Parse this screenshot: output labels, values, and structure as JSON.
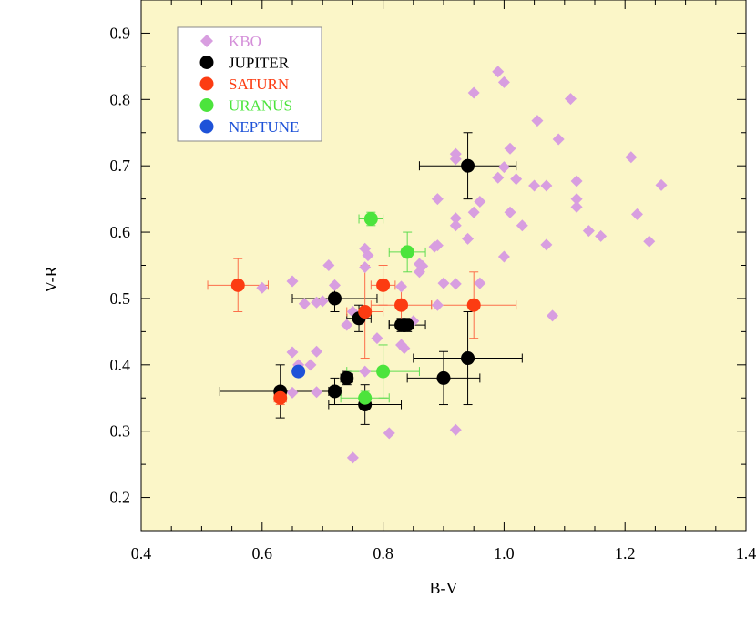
{
  "chart_data": {
    "type": "scatter",
    "title": "",
    "xlabel": "B-V",
    "ylabel": "V-R",
    "xlim": [
      0.4,
      1.4
    ],
    "ylim": [
      0.15,
      0.95
    ],
    "grid": false,
    "background": "#fbf6c8",
    "legend_position": "top-left",
    "xticks": [
      {
        "v": 0.4,
        "label": "0.4"
      },
      {
        "v": 0.6,
        "label": "0.6"
      },
      {
        "v": 0.8,
        "label": "0.8"
      },
      {
        "v": 1.0,
        "label": "1.0"
      },
      {
        "v": 1.2,
        "label": "1.2"
      },
      {
        "v": 1.4,
        "label": "1.4"
      }
    ],
    "yticks": [
      {
        "v": 0.2,
        "label": "0.2"
      },
      {
        "v": 0.3,
        "label": "0.3"
      },
      {
        "v": 0.4,
        "label": "0.4"
      },
      {
        "v": 0.5,
        "label": "0.5"
      },
      {
        "v": 0.6,
        "label": "0.6"
      },
      {
        "v": 0.7,
        "label": "0.7"
      },
      {
        "v": 0.8,
        "label": "0.8"
      },
      {
        "v": 0.9,
        "label": "0.9"
      }
    ],
    "series": [
      {
        "name": "KBO",
        "marker": "diamond",
        "color": "#d89ee0",
        "label_color": "#d48fd9",
        "points": [
          [
            0.99,
            0.842
          ],
          [
            1.0,
            0.826
          ],
          [
            0.95,
            0.81
          ],
          [
            1.11,
            0.801
          ],
          [
            1.055,
            0.768
          ],
          [
            1.09,
            0.74
          ],
          [
            1.01,
            0.726
          ],
          [
            0.92,
            0.718
          ],
          [
            1.21,
            0.713
          ],
          [
            0.92,
            0.71
          ],
          [
            1.0,
            0.698
          ],
          [
            1.12,
            0.677
          ],
          [
            0.99,
            0.682
          ],
          [
            1.02,
            0.68
          ],
          [
            1.05,
            0.67
          ],
          [
            1.07,
            0.67
          ],
          [
            1.26,
            0.671
          ],
          [
            1.12,
            0.65
          ],
          [
            0.89,
            0.65
          ],
          [
            0.96,
            0.646
          ],
          [
            1.12,
            0.638
          ],
          [
            1.01,
            0.63
          ],
          [
            0.95,
            0.63
          ],
          [
            1.22,
            0.627
          ],
          [
            0.92,
            0.621
          ],
          [
            0.92,
            0.61
          ],
          [
            1.03,
            0.61
          ],
          [
            1.14,
            0.602
          ],
          [
            1.16,
            0.594
          ],
          [
            0.94,
            0.59
          ],
          [
            1.24,
            0.586
          ],
          [
            1.07,
            0.581
          ],
          [
            0.89,
            0.58
          ],
          [
            0.885,
            0.578
          ],
          [
            0.77,
            0.575
          ],
          [
            0.775,
            0.565
          ],
          [
            1.0,
            0.563
          ],
          [
            0.86,
            0.552
          ],
          [
            0.865,
            0.549
          ],
          [
            0.71,
            0.55
          ],
          [
            0.77,
            0.547
          ],
          [
            0.86,
            0.54
          ],
          [
            0.65,
            0.526
          ],
          [
            0.9,
            0.523
          ],
          [
            0.96,
            0.523
          ],
          [
            0.92,
            0.522
          ],
          [
            0.72,
            0.52
          ],
          [
            0.83,
            0.518
          ],
          [
            0.6,
            0.516
          ],
          [
            0.69,
            0.494
          ],
          [
            0.89,
            0.49
          ],
          [
            0.7,
            0.496
          ],
          [
            0.67,
            0.492
          ],
          [
            0.75,
            0.48
          ],
          [
            1.08,
            0.474
          ],
          [
            0.85,
            0.466
          ],
          [
            0.74,
            0.46
          ],
          [
            0.79,
            0.44
          ],
          [
            0.83,
            0.43
          ],
          [
            0.835,
            0.425
          ],
          [
            0.69,
            0.42
          ],
          [
            0.65,
            0.419
          ],
          [
            0.66,
            0.4
          ],
          [
            0.68,
            0.4
          ],
          [
            0.77,
            0.39
          ],
          [
            0.65,
            0.358
          ],
          [
            0.69,
            0.359
          ],
          [
            0.92,
            0.302
          ],
          [
            0.81,
            0.297
          ],
          [
            0.75,
            0.26
          ]
        ]
      },
      {
        "name": "JUPITER",
        "marker": "circle",
        "color": "#000000",
        "label_color": "#000000",
        "err_color": "#000000",
        "points": [
          {
            "x": 0.94,
            "y": 0.7,
            "xe": 0.08,
            "ye": 0.05
          },
          {
            "x": 0.72,
            "y": 0.5,
            "xe": 0.07,
            "ye": 0.02
          },
          {
            "x": 0.76,
            "y": 0.47,
            "xe": 0.02,
            "ye": 0.02
          },
          {
            "x": 0.83,
            "y": 0.46,
            "xe": 0.02,
            "ye": 0.01
          },
          {
            "x": 0.84,
            "y": 0.46,
            "xe": 0.03,
            "ye": 0.01
          },
          {
            "x": 0.94,
            "y": 0.41,
            "xe": 0.09,
            "ye": 0.07
          },
          {
            "x": 0.9,
            "y": 0.38,
            "xe": 0.06,
            "ye": 0.04
          },
          {
            "x": 0.74,
            "y": 0.38,
            "xe": 0.01,
            "ye": 0.01
          },
          {
            "x": 0.72,
            "y": 0.36,
            "xe": 0.01,
            "ye": 0.02
          },
          {
            "x": 0.63,
            "y": 0.36,
            "xe": 0.1,
            "ye": 0.04
          },
          {
            "x": 0.77,
            "y": 0.34,
            "xe": 0.06,
            "ye": 0.03
          }
        ]
      },
      {
        "name": "SATURN",
        "marker": "circle",
        "color": "#fc3c12",
        "label_color": "#fc3c12",
        "err_color": "#fc6e4a",
        "points": [
          {
            "x": 0.56,
            "y": 0.52,
            "xe": 0.05,
            "ye": 0.04
          },
          {
            "x": 0.8,
            "y": 0.52,
            "xe": 0.02,
            "ye": 0.03
          },
          {
            "x": 0.77,
            "y": 0.48,
            "xe": 0.03,
            "ye": 0.07
          },
          {
            "x": 0.83,
            "y": 0.49,
            "xe": 0.05,
            "ye": 0.03
          },
          {
            "x": 0.95,
            "y": 0.49,
            "xe": 0.07,
            "ye": 0.05
          },
          {
            "x": 0.63,
            "y": 0.35,
            "xe": 0.01,
            "ye": 0.01
          }
        ]
      },
      {
        "name": "URANUS",
        "marker": "circle",
        "color": "#4ce43c",
        "label_color": "#4ce43c",
        "err_color": "#5fdc50",
        "points": [
          {
            "x": 0.78,
            "y": 0.62,
            "xe": 0.02,
            "ye": 0.01
          },
          {
            "x": 0.84,
            "y": 0.57,
            "xe": 0.03,
            "ye": 0.03
          },
          {
            "x": 0.8,
            "y": 0.39,
            "xe": 0.06,
            "ye": 0.04
          },
          {
            "x": 0.77,
            "y": 0.35,
            "xe": 0.04,
            "ye": 0.01
          }
        ]
      },
      {
        "name": "NEPTUNE",
        "marker": "circle",
        "color": "#1e52d8",
        "label_color": "#1e52d8",
        "err_color": "#1e52d8",
        "points": [
          {
            "x": 0.66,
            "y": 0.39,
            "xe": 0.0,
            "ye": 0.0
          }
        ]
      }
    ]
  }
}
